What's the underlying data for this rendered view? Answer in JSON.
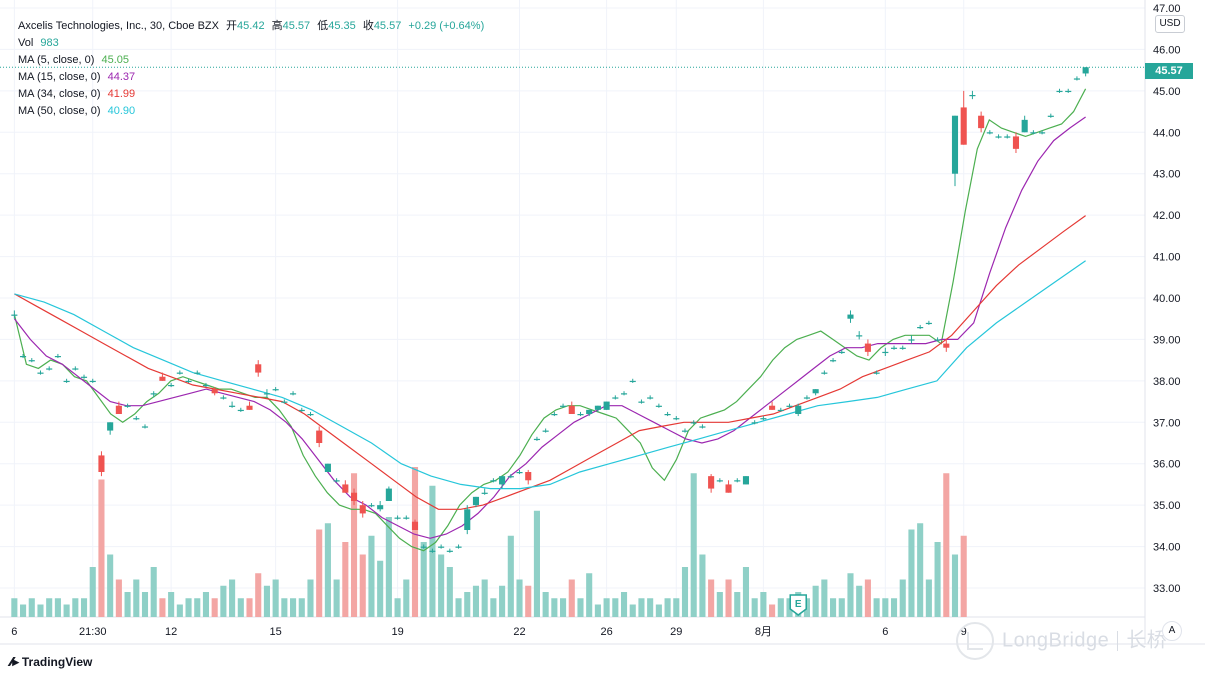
{
  "header": {
    "title": "Axcelis Technologies, Inc., 30, Cboe BZX",
    "o_label": "开",
    "o_value": "45.42",
    "h_label": "高",
    "h_value": "45.57",
    "l_label": "低",
    "l_value": "45.35",
    "c_label": "收",
    "c_value": "45.57",
    "change": "+0.29 (+0.64%)"
  },
  "legend": {
    "vol_label": "Vol",
    "vol_value": "983",
    "ma5_label": "MA (5, close, 0)",
    "ma5_value": "45.05",
    "ma15_label": "MA (15, close, 0)",
    "ma15_value": "44.37",
    "ma34_label": "MA (34, close, 0)",
    "ma34_value": "41.99",
    "ma50_label": "MA (50, close, 0)",
    "ma50_value": "40.90"
  },
  "colors": {
    "up": "#26a69a",
    "down": "#ef5350",
    "up_vol": "#8fd0c7",
    "down_vol": "#f3a6a4",
    "ma5": "#4caf50",
    "ma15": "#9c27b0",
    "ma34": "#e53935",
    "ma50": "#26c6da",
    "grid": "#f0f3fa"
  },
  "currency": "USD",
  "last_price_tag": "45.57",
  "earnings_marker": "E",
  "auto_button": "A",
  "brand": "TradingView",
  "watermark": "LongBridge",
  "watermark_cn": "长桥",
  "chart_data": {
    "type": "candlestick",
    "title": "Axcelis Technologies, Inc., 30, Cboe BZX",
    "interval": "30",
    "ylim": [
      32.3,
      47.0
    ],
    "y_ticks": [
      "47.00",
      "46.00",
      "45.00",
      "44.00",
      "43.00",
      "42.00",
      "41.00",
      "40.00",
      "39.00",
      "38.00",
      "37.00",
      "36.00",
      "35.00",
      "34.00",
      "33.00"
    ],
    "x_ticks": [
      {
        "label": "6",
        "bar": 0
      },
      {
        "label": "21:30",
        "bar": 9
      },
      {
        "label": "12",
        "bar": 18
      },
      {
        "label": "15",
        "bar": 30
      },
      {
        "label": "19",
        "bar": 44
      },
      {
        "label": "22",
        "bar": 58
      },
      {
        "label": "26",
        "bar": 68
      },
      {
        "label": "29",
        "bar": 76
      },
      {
        "label": "8月",
        "bar": 86
      },
      {
        "label": "6",
        "bar": 100
      },
      {
        "label": "9",
        "bar": 109
      }
    ],
    "bars": [
      {
        "o": 39.6,
        "h": 39.7,
        "l": 39.5,
        "c": 39.6
      },
      {
        "o": 38.6,
        "h": 38.65,
        "l": 38.55,
        "c": 38.6
      },
      {
        "o": 38.5,
        "h": 38.55,
        "l": 38.45,
        "c": 38.5
      },
      {
        "o": 38.2,
        "h": 38.25,
        "l": 38.15,
        "c": 38.2
      },
      {
        "o": 38.3,
        "h": 38.35,
        "l": 38.25,
        "c": 38.3
      },
      {
        "o": 38.6,
        "h": 38.65,
        "l": 38.55,
        "c": 38.6
      },
      {
        "o": 38.0,
        "h": 38.05,
        "l": 37.95,
        "c": 38.0
      },
      {
        "o": 38.3,
        "h": 38.35,
        "l": 38.25,
        "c": 38.3
      },
      {
        "o": 38.1,
        "h": 38.15,
        "l": 38.05,
        "c": 38.1
      },
      {
        "o": 38.0,
        "h": 38.05,
        "l": 37.95,
        "c": 38.0
      },
      {
        "o": 36.2,
        "h": 36.3,
        "l": 35.7,
        "c": 35.8
      },
      {
        "o": 36.8,
        "h": 37.0,
        "l": 36.7,
        "c": 37.0
      },
      {
        "o": 37.4,
        "h": 37.5,
        "l": 37.2,
        "c": 37.2
      },
      {
        "o": 37.4,
        "h": 37.45,
        "l": 37.35,
        "c": 37.4
      },
      {
        "o": 37.1,
        "h": 37.15,
        "l": 37.05,
        "c": 37.1
      },
      {
        "o": 36.9,
        "h": 36.95,
        "l": 36.85,
        "c": 36.9
      },
      {
        "o": 37.7,
        "h": 37.75,
        "l": 37.6,
        "c": 37.7
      },
      {
        "o": 38.1,
        "h": 38.2,
        "l": 38.0,
        "c": 38.0
      },
      {
        "o": 37.9,
        "h": 37.95,
        "l": 37.85,
        "c": 37.9
      },
      {
        "o": 38.2,
        "h": 38.25,
        "l": 38.15,
        "c": 38.2
      },
      {
        "o": 38.0,
        "h": 38.05,
        "l": 37.95,
        "c": 38.0
      },
      {
        "o": 38.2,
        "h": 38.25,
        "l": 38.15,
        "c": 38.2
      },
      {
        "o": 37.9,
        "h": 37.95,
        "l": 37.85,
        "c": 37.9
      },
      {
        "o": 37.8,
        "h": 37.85,
        "l": 37.65,
        "c": 37.7
      },
      {
        "o": 37.6,
        "h": 37.65,
        "l": 37.55,
        "c": 37.6
      },
      {
        "o": 37.4,
        "h": 37.5,
        "l": 37.35,
        "c": 37.4
      },
      {
        "o": 37.3,
        "h": 37.35,
        "l": 37.25,
        "c": 37.3
      },
      {
        "o": 37.4,
        "h": 37.5,
        "l": 37.3,
        "c": 37.3
      },
      {
        "o": 38.4,
        "h": 38.5,
        "l": 38.1,
        "c": 38.2
      },
      {
        "o": 37.7,
        "h": 37.8,
        "l": 37.6,
        "c": 37.7
      },
      {
        "o": 37.8,
        "h": 37.85,
        "l": 37.75,
        "c": 37.8
      },
      {
        "o": 37.5,
        "h": 37.55,
        "l": 37.45,
        "c": 37.5
      },
      {
        "o": 37.7,
        "h": 37.75,
        "l": 37.65,
        "c": 37.7
      },
      {
        "o": 37.3,
        "h": 37.35,
        "l": 37.25,
        "c": 37.3
      },
      {
        "o": 37.2,
        "h": 37.25,
        "l": 37.15,
        "c": 37.2
      },
      {
        "o": 36.8,
        "h": 36.9,
        "l": 36.4,
        "c": 36.5
      },
      {
        "o": 35.8,
        "h": 36.0,
        "l": 35.8,
        "c": 36.0
      },
      {
        "o": 35.6,
        "h": 35.65,
        "l": 35.55,
        "c": 35.6
      },
      {
        "o": 35.5,
        "h": 35.6,
        "l": 35.3,
        "c": 35.3
      },
      {
        "o": 35.3,
        "h": 35.4,
        "l": 35.0,
        "c": 35.1
      },
      {
        "o": 35.0,
        "h": 35.1,
        "l": 34.7,
        "c": 34.8
      },
      {
        "o": 35.0,
        "h": 35.05,
        "l": 34.95,
        "c": 35.0
      },
      {
        "o": 34.9,
        "h": 35.1,
        "l": 34.85,
        "c": 35.0
      },
      {
        "o": 35.1,
        "h": 35.45,
        "l": 35.1,
        "c": 35.4
      },
      {
        "o": 34.7,
        "h": 34.75,
        "l": 34.65,
        "c": 34.7
      },
      {
        "o": 34.7,
        "h": 34.75,
        "l": 34.65,
        "c": 34.7
      },
      {
        "o": 34.6,
        "h": 34.65,
        "l": 34.4,
        "c": 34.4
      },
      {
        "o": 34.0,
        "h": 34.05,
        "l": 33.95,
        "c": 34.0
      },
      {
        "o": 33.9,
        "h": 33.95,
        "l": 33.85,
        "c": 33.9
      },
      {
        "o": 34.0,
        "h": 34.05,
        "l": 33.95,
        "c": 34.0
      },
      {
        "o": 33.9,
        "h": 33.95,
        "l": 33.85,
        "c": 33.9
      },
      {
        "o": 34.0,
        "h": 34.05,
        "l": 33.95,
        "c": 34.0
      },
      {
        "o": 34.4,
        "h": 35.0,
        "l": 34.3,
        "c": 34.9
      },
      {
        "o": 35.0,
        "h": 35.2,
        "l": 34.95,
        "c": 35.2
      },
      {
        "o": 35.3,
        "h": 35.4,
        "l": 35.25,
        "c": 35.3
      },
      {
        "o": 35.6,
        "h": 35.65,
        "l": 35.55,
        "c": 35.6
      },
      {
        "o": 35.5,
        "h": 35.7,
        "l": 35.4,
        "c": 35.7
      },
      {
        "o": 35.7,
        "h": 35.75,
        "l": 35.65,
        "c": 35.7
      },
      {
        "o": 35.8,
        "h": 35.85,
        "l": 35.75,
        "c": 35.8
      },
      {
        "o": 35.8,
        "h": 35.85,
        "l": 35.5,
        "c": 35.6
      },
      {
        "o": 36.6,
        "h": 36.65,
        "l": 36.55,
        "c": 36.6
      },
      {
        "o": 36.8,
        "h": 36.85,
        "l": 36.75,
        "c": 36.8
      },
      {
        "o": 37.2,
        "h": 37.25,
        "l": 37.15,
        "c": 37.2
      },
      {
        "o": 37.4,
        "h": 37.45,
        "l": 37.35,
        "c": 37.4
      },
      {
        "o": 37.4,
        "h": 37.5,
        "l": 37.2,
        "c": 37.2
      },
      {
        "o": 37.2,
        "h": 37.25,
        "l": 37.15,
        "c": 37.2
      },
      {
        "o": 37.2,
        "h": 37.3,
        "l": 37.15,
        "c": 37.3
      },
      {
        "o": 37.3,
        "h": 37.4,
        "l": 37.25,
        "c": 37.4
      },
      {
        "o": 37.3,
        "h": 37.5,
        "l": 37.3,
        "c": 37.5
      },
      {
        "o": 37.6,
        "h": 37.65,
        "l": 37.55,
        "c": 37.6
      },
      {
        "o": 37.7,
        "h": 37.75,
        "l": 37.65,
        "c": 37.7
      },
      {
        "o": 38.0,
        "h": 38.05,
        "l": 37.95,
        "c": 38.0
      },
      {
        "o": 37.5,
        "h": 37.55,
        "l": 37.45,
        "c": 37.5
      },
      {
        "o": 37.6,
        "h": 37.65,
        "l": 37.55,
        "c": 37.6
      },
      {
        "o": 37.4,
        "h": 37.45,
        "l": 37.35,
        "c": 37.4
      },
      {
        "o": 37.2,
        "h": 37.25,
        "l": 37.15,
        "c": 37.2
      },
      {
        "o": 37.1,
        "h": 37.15,
        "l": 37.05,
        "c": 37.1
      },
      {
        "o": 36.8,
        "h": 36.85,
        "l": 36.75,
        "c": 36.8
      },
      {
        "o": 37.0,
        "h": 37.05,
        "l": 36.95,
        "c": 37.0
      },
      {
        "o": 36.9,
        "h": 36.95,
        "l": 36.85,
        "c": 36.9
      },
      {
        "o": 35.7,
        "h": 35.75,
        "l": 35.3,
        "c": 35.4
      },
      {
        "o": 35.6,
        "h": 35.65,
        "l": 35.55,
        "c": 35.6
      },
      {
        "o": 35.5,
        "h": 35.6,
        "l": 35.3,
        "c": 35.3
      },
      {
        "o": 35.6,
        "h": 35.65,
        "l": 35.55,
        "c": 35.6
      },
      {
        "o": 35.5,
        "h": 35.7,
        "l": 35.5,
        "c": 35.7
      },
      {
        "o": 37.0,
        "h": 37.05,
        "l": 36.95,
        "c": 37.0
      },
      {
        "o": 37.1,
        "h": 37.15,
        "l": 37.05,
        "c": 37.1
      },
      {
        "o": 37.4,
        "h": 37.5,
        "l": 37.3,
        "c": 37.3
      }
    ],
    "bars_tail": [
      {
        "o": 37.3,
        "h": 37.35,
        "l": 37.25,
        "c": 37.3
      },
      {
        "o": 37.4,
        "h": 37.45,
        "l": 37.35,
        "c": 37.4
      },
      {
        "o": 37.2,
        "h": 37.45,
        "l": 37.15,
        "c": 37.4
      },
      {
        "o": 37.6,
        "h": 37.65,
        "l": 37.55,
        "c": 37.6
      },
      {
        "o": 37.7,
        "h": 37.8,
        "l": 37.65,
        "c": 37.8
      },
      {
        "o": 38.2,
        "h": 38.25,
        "l": 38.15,
        "c": 38.2
      },
      {
        "o": 38.5,
        "h": 38.55,
        "l": 38.45,
        "c": 38.5
      },
      {
        "o": 38.7,
        "h": 38.75,
        "l": 38.65,
        "c": 38.7
      },
      {
        "o": 39.5,
        "h": 39.7,
        "l": 39.4,
        "c": 39.6
      },
      {
        "o": 39.1,
        "h": 39.2,
        "l": 39.0,
        "c": 39.1
      },
      {
        "o": 38.9,
        "h": 39.0,
        "l": 38.6,
        "c": 38.7
      },
      {
        "o": 38.2,
        "h": 38.25,
        "l": 38.15,
        "c": 38.2
      },
      {
        "o": 38.7,
        "h": 38.8,
        "l": 38.6,
        "c": 38.7
      },
      {
        "o": 38.8,
        "h": 38.85,
        "l": 38.75,
        "c": 38.8
      },
      {
        "o": 38.8,
        "h": 38.85,
        "l": 38.75,
        "c": 38.8
      },
      {
        "o": 39.0,
        "h": 39.1,
        "l": 38.9,
        "c": 39.0
      },
      {
        "o": 39.3,
        "h": 39.35,
        "l": 39.25,
        "c": 39.3
      },
      {
        "o": 39.4,
        "h": 39.45,
        "l": 39.35,
        "c": 39.4
      },
      {
        "o": 39.0,
        "h": 39.05,
        "l": 38.95,
        "c": 39.0
      },
      {
        "o": 38.9,
        "h": 39.0,
        "l": 38.7,
        "c": 38.8
      },
      {
        "o": 43.0,
        "h": 44.4,
        "l": 42.7,
        "c": 44.4
      },
      {
        "o": 44.6,
        "h": 45.0,
        "l": 43.7,
        "c": 43.7
      },
      {
        "o": 44.9,
        "h": 45.0,
        "l": 44.8,
        "c": 44.9
      },
      {
        "o": 44.4,
        "h": 44.5,
        "l": 44.0,
        "c": 44.1
      },
      {
        "o": 44.0,
        "h": 44.05,
        "l": 43.95,
        "c": 44.0
      },
      {
        "o": 43.9,
        "h": 43.95,
        "l": 43.85,
        "c": 43.9
      },
      {
        "o": 43.9,
        "h": 43.95,
        "l": 43.85,
        "c": 43.9
      },
      {
        "o": 43.9,
        "h": 44.0,
        "l": 43.5,
        "c": 43.6
      },
      {
        "o": 44.0,
        "h": 44.4,
        "l": 44.0,
        "c": 44.3
      },
      {
        "o": 44.0,
        "h": 44.05,
        "l": 43.95,
        "c": 44.0
      },
      {
        "o": 44.0,
        "h": 44.05,
        "l": 43.95,
        "c": 44.0
      },
      {
        "o": 44.4,
        "h": 44.45,
        "l": 44.35,
        "c": 44.4
      },
      {
        "o": 45.0,
        "h": 45.05,
        "l": 44.95,
        "c": 45.0
      },
      {
        "o": 45.0,
        "h": 45.05,
        "l": 44.95,
        "c": 45.0
      },
      {
        "o": 45.3,
        "h": 45.35,
        "l": 45.25,
        "c": 45.3
      },
      {
        "o": 45.42,
        "h": 45.57,
        "l": 45.35,
        "c": 45.57
      }
    ],
    "volumes": [
      0.3,
      0.2,
      0.3,
      0.2,
      0.3,
      0.3,
      0.2,
      0.3,
      0.3,
      0.8,
      2.2,
      1.0,
      0.6,
      0.4,
      0.6,
      0.4,
      0.8,
      0.3,
      0.4,
      0.2,
      0.3,
      0.3,
      0.4,
      0.3,
      0.5,
      0.6,
      0.3,
      0.3,
      0.7,
      0.5,
      0.6,
      0.3,
      0.3,
      0.3,
      0.6,
      1.4,
      1.5,
      0.6,
      1.2,
      2.3,
      1.0,
      1.3,
      0.9,
      1.6,
      0.3,
      0.6,
      2.4,
      1.2,
      2.1,
      1.0,
      0.8,
      0.3,
      0.4,
      0.5,
      0.6,
      0.3,
      0.5,
      1.3,
      0.6,
      0.5,
      1.7,
      0.4,
      0.3,
      0.3,
      0.6,
      0.3,
      0.7,
      0.2,
      0.3,
      0.3,
      0.4,
      0.2,
      0.3,
      0.3,
      0.2,
      0.3,
      0.3,
      0.8,
      2.3,
      1.0,
      0.6,
      0.4,
      0.6,
      0.4,
      0.8,
      0.3,
      0.4,
      0.2,
      0.3,
      0.3,
      0.4,
      0.3,
      0.5,
      0.6,
      0.3,
      0.3,
      0.7,
      0.5,
      0.6,
      0.3,
      0.3,
      0.3,
      0.6,
      1.4,
      1.5,
      0.6,
      1.2,
      2.3,
      1.0,
      1.3
    ],
    "series": [
      {
        "name": "MA (5, close, 0)",
        "color": "#4caf50",
        "values": [
          39.6,
          38.4,
          38.3,
          38.5,
          38.4,
          38.1,
          38.0,
          37.6,
          37.2,
          37.0,
          37.2,
          37.5,
          37.7,
          38.0,
          38.1,
          38.0,
          37.9,
          37.8,
          37.8,
          37.7,
          37.6,
          37.6,
          37.3,
          36.9,
          36.2,
          35.7,
          35.3,
          35.0,
          34.9,
          34.9,
          34.8,
          34.5,
          34.2,
          34.0,
          33.9,
          34.1,
          34.5,
          35.0,
          35.3,
          35.5,
          35.6,
          35.8,
          36.2,
          36.7,
          37.1,
          37.3,
          37.4,
          37.4,
          37.3,
          37.2,
          37.1,
          36.8,
          36.5,
          35.9,
          35.6,
          36.1,
          36.8,
          37.1,
          37.2,
          37.3,
          37.5,
          37.8,
          38.1,
          38.5,
          38.8,
          39.0,
          39.1,
          39.2,
          39.0,
          38.8,
          38.6,
          38.5,
          38.8,
          39.0,
          39.1,
          39.1,
          39.1,
          38.9,
          40.4,
          42.1,
          43.6,
          44.3,
          44.1,
          44.0,
          43.9,
          44.0,
          44.1,
          44.2,
          44.5,
          45.05
        ]
      },
      {
        "name": "MA (15, close, 0)",
        "color": "#9c27b0",
        "values": [
          39.5,
          39.0,
          38.6,
          38.4,
          38.1,
          37.8,
          37.5,
          37.4,
          37.4,
          37.5,
          37.6,
          37.7,
          37.8,
          37.7,
          37.6,
          37.5,
          37.3,
          37.0,
          36.6,
          36.1,
          35.6,
          35.2,
          35.0,
          34.7,
          34.5,
          34.3,
          34.2,
          34.3,
          34.5,
          34.8,
          35.2,
          35.7,
          36.0,
          36.4,
          36.7,
          37.0,
          37.2,
          37.4,
          37.4,
          37.2,
          37.0,
          36.8,
          36.6,
          36.5,
          36.6,
          36.8,
          37.1,
          37.4,
          37.7,
          38.0,
          38.3,
          38.6,
          38.8,
          38.8,
          38.9,
          38.9,
          38.9,
          38.9,
          39.0,
          39.0,
          39.4,
          40.6,
          41.7,
          42.6,
          43.3,
          43.8,
          44.1,
          44.37
        ]
      },
      {
        "name": "MA (34, close, 0)",
        "color": "#e53935",
        "values": [
          40.1,
          39.8,
          39.5,
          39.2,
          38.9,
          38.6,
          38.3,
          38.1,
          37.9,
          37.8,
          37.7,
          37.6,
          37.5,
          37.2,
          36.8,
          36.4,
          36.0,
          35.6,
          35.2,
          34.9,
          34.9,
          35.0,
          35.2,
          35.4,
          35.6,
          35.9,
          36.2,
          36.5,
          36.8,
          36.9,
          37.0,
          37.0,
          37.0,
          37.1,
          37.2,
          37.4,
          37.6,
          37.8,
          38.1,
          38.3,
          38.5,
          38.7,
          39.1,
          39.7,
          40.3,
          40.8,
          41.2,
          41.6,
          41.99
        ]
      },
      {
        "name": "MA (50, close, 0)",
        "color": "#26c6da",
        "values": [
          40.1,
          39.9,
          39.6,
          39.2,
          38.8,
          38.5,
          38.2,
          38.0,
          37.8,
          37.6,
          37.3,
          36.9,
          36.5,
          36.0,
          35.7,
          35.5,
          35.4,
          35.4,
          35.5,
          35.8,
          36.0,
          36.2,
          36.4,
          36.6,
          36.8,
          37.0,
          37.2,
          37.4,
          37.5,
          37.6,
          37.8,
          38.0,
          38.8,
          39.4,
          39.9,
          40.4,
          40.9
        ]
      }
    ]
  }
}
